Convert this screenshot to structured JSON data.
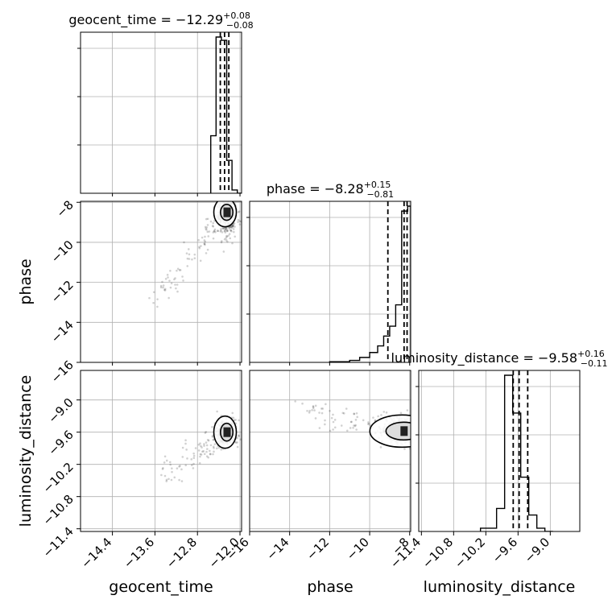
{
  "chart_data": {
    "type": "corner",
    "parameters": [
      "geocent_time",
      "phase",
      "luminosity_distance"
    ],
    "titles": [
      {
        "param": "geocent_time",
        "median": "−12.29",
        "plus": "+0.08",
        "minus": "−0.08"
      },
      {
        "param": "phase",
        "median": "−8.28",
        "plus": "+0.15",
        "minus": "−0.81"
      },
      {
        "param": "luminosity_distance",
        "median": "−9.58",
        "plus": "+0.16",
        "minus": "−0.11"
      }
    ],
    "ranges": {
      "geocent_time": [
        -15.0,
        -11.97
      ],
      "phase": [
        -16.0,
        -7.95
      ],
      "luminosity_distance": [
        -11.45,
        -8.45
      ]
    },
    "ticks": {
      "geocent_time": [
        {
          "v": -14.4,
          "label": "−14.4"
        },
        {
          "v": -13.6,
          "label": "−13.6"
        },
        {
          "v": -12.8,
          "label": "−12.8"
        },
        {
          "v": -12.0,
          "label": "−12.0"
        }
      ],
      "phase": [
        {
          "v": -16,
          "label": "−16"
        },
        {
          "v": -14,
          "label": "−14"
        },
        {
          "v": -12,
          "label": "−12"
        },
        {
          "v": -10,
          "label": "−10"
        },
        {
          "v": -8,
          "label": "−8"
        }
      ],
      "luminosity_distance": [
        {
          "v": -11.4,
          "label": "−11.4"
        },
        {
          "v": -10.8,
          "label": "−10.8"
        },
        {
          "v": -10.2,
          "label": "−10.2"
        },
        {
          "v": -9.6,
          "label": "−9.6"
        },
        {
          "v": -9.0,
          "label": "−9.0"
        }
      ]
    },
    "histograms": {
      "geocent_time": {
        "edges": [
          -12.55,
          -12.45,
          -12.35,
          -12.25,
          -12.15,
          -12.05,
          -11.97
        ],
        "counts": [
          0.35,
          0.95,
          0.93,
          0.2,
          0.02,
          0
        ],
        "quantiles": [
          -12.37,
          -12.29,
          -12.21
        ]
      },
      "phase": {
        "edges": [
          -12.0,
          -11.0,
          -10.5,
          -10.0,
          -9.6,
          -9.3,
          -9.0,
          -8.7,
          -8.4,
          -8.1,
          -7.95
        ],
        "counts": [
          0.004,
          0.012,
          0.03,
          0.06,
          0.1,
          0.16,
          0.22,
          0.35,
          0.92,
          0.95
        ],
        "quantiles": [
          -9.09,
          -8.28,
          -8.13
        ]
      },
      "luminosity_distance": {
        "edges": [
          -10.3,
          -10.0,
          -9.85,
          -9.7,
          -9.55,
          -9.4,
          -9.25,
          -9.1,
          -8.95
        ],
        "counts": [
          0.02,
          0.14,
          0.95,
          0.72,
          0.33,
          0.1,
          0.02,
          0
        ],
        "quantiles": [
          -9.69,
          -9.58,
          -9.42
        ]
      }
    },
    "scatter_density": {
      "phase_vs_geocent_time": {
        "center": [
          -12.25,
          -8.5
        ],
        "tail_to": [
          -13.6,
          -13.0
        ]
      },
      "luminosity_distance_vs_geocent_time": {
        "center": [
          -12.25,
          -9.6
        ],
        "tail_to": [
          -13.4,
          -10.4
        ]
      },
      "luminosity_distance_vs_phase": {
        "center": [
          -8.3,
          -9.58
        ],
        "tail_to": [
          -13.5,
          -9.2
        ]
      }
    },
    "grid": true,
    "legend": "none"
  }
}
